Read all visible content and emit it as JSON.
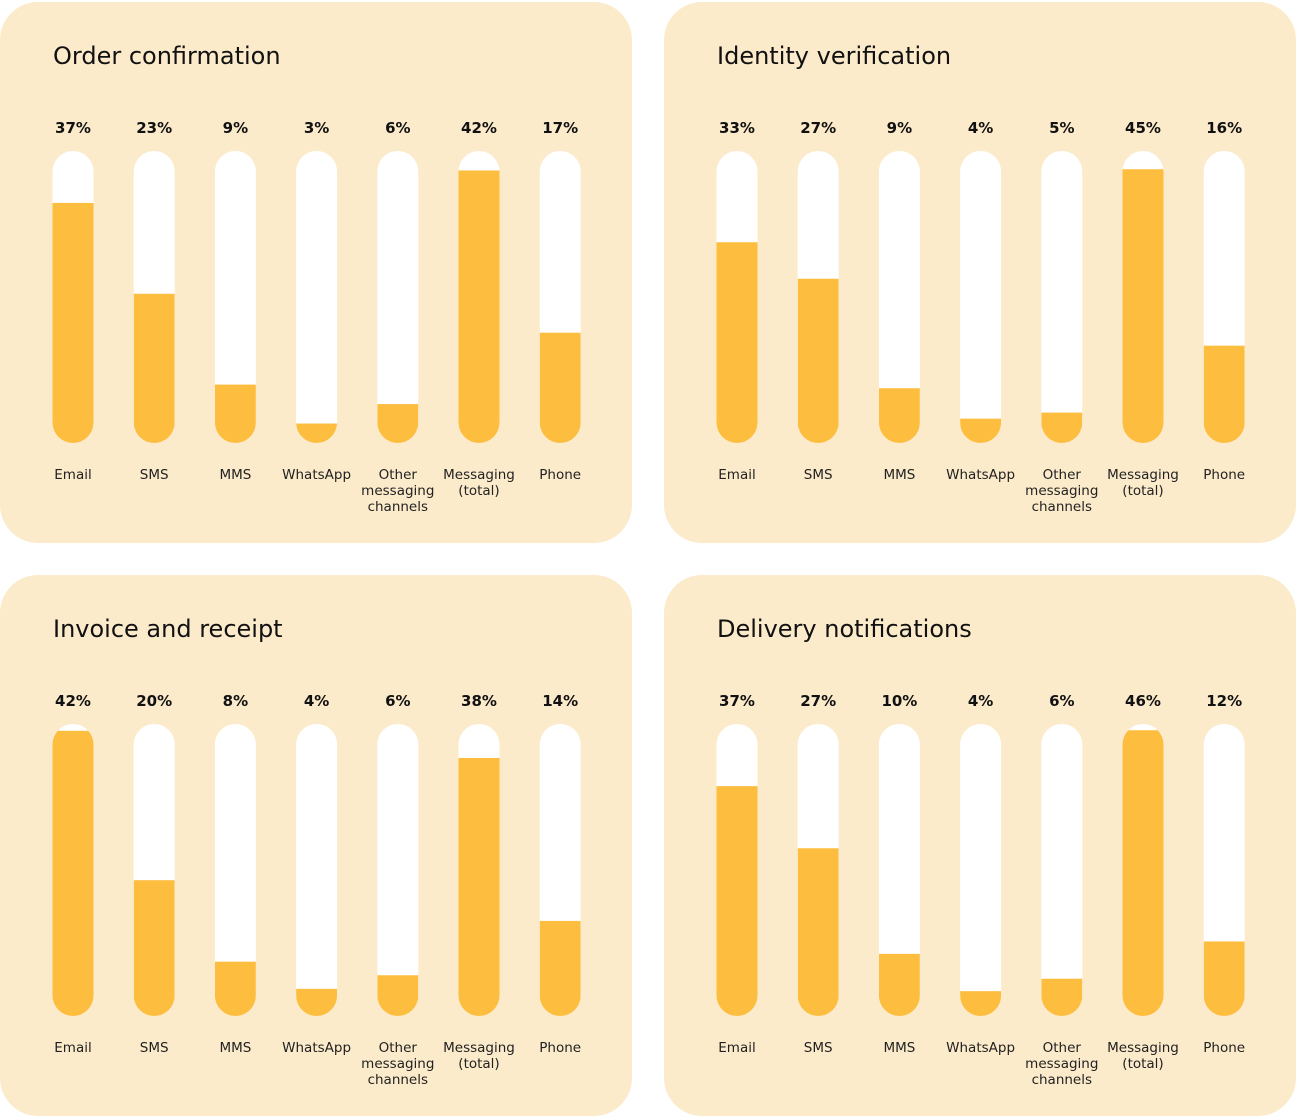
{
  "colors": {
    "panel_bg": "#fcebcb",
    "track": "#ffffff",
    "fill": "#fdbd3f",
    "text": "#111111"
  },
  "chart_data": [
    {
      "type": "bar",
      "title": "Order confirmation",
      "categories": [
        "Email",
        "SMS",
        "MMS",
        "WhatsApp",
        "Other messaging channels",
        "Messaging (total)",
        "Phone"
      ],
      "category_lines": [
        [
          "Email"
        ],
        [
          "SMS"
        ],
        [
          "MMS"
        ],
        [
          "WhatsApp"
        ],
        [
          "Other",
          "messaging",
          "channels"
        ],
        [
          "Messaging",
          "(total)"
        ],
        [
          "Phone"
        ]
      ],
      "values": [
        37,
        23,
        9,
        3,
        6,
        42,
        17
      ],
      "value_labels": [
        "37%",
        "23%",
        "9%",
        "3%",
        "6%",
        "42%",
        "17%"
      ],
      "ylim": [
        0,
        45
      ],
      "unit": "%"
    },
    {
      "type": "bar",
      "title": "Identity verification",
      "categories": [
        "Email",
        "SMS",
        "MMS",
        "WhatsApp",
        "Other messaging channels",
        "Messaging (total)",
        "Phone"
      ],
      "category_lines": [
        [
          "Email"
        ],
        [
          "SMS"
        ],
        [
          "MMS"
        ],
        [
          "WhatsApp"
        ],
        [
          "Other",
          "messaging",
          "channels"
        ],
        [
          "Messaging",
          "(total)"
        ],
        [
          "Phone"
        ]
      ],
      "values": [
        33,
        27,
        9,
        4,
        5,
        45,
        16
      ],
      "value_labels": [
        "33%",
        "27%",
        "9%",
        "4%",
        "5%",
        "45%",
        "16%"
      ],
      "ylim": [
        0,
        48
      ],
      "unit": "%"
    },
    {
      "type": "bar",
      "title": "Invoice and receipt",
      "categories": [
        "Email",
        "SMS",
        "MMS",
        "WhatsApp",
        "Other messaging channels",
        "Messaging (total)",
        "Phone"
      ],
      "category_lines": [
        [
          "Email"
        ],
        [
          "SMS"
        ],
        [
          "MMS"
        ],
        [
          "WhatsApp"
        ],
        [
          "Other",
          "messaging",
          "channels"
        ],
        [
          "Messaging",
          "(total)"
        ],
        [
          "Phone"
        ]
      ],
      "values": [
        42,
        20,
        8,
        4,
        6,
        38,
        14
      ],
      "value_labels": [
        "42%",
        "20%",
        "8%",
        "4%",
        "6%",
        "38%",
        "14%"
      ],
      "ylim": [
        0,
        43
      ],
      "unit": "%"
    },
    {
      "type": "bar",
      "title": "Delivery notifications",
      "categories": [
        "Email",
        "SMS",
        "MMS",
        "WhatsApp",
        "Other messaging channels",
        "Messaging (total)",
        "Phone"
      ],
      "category_lines": [
        [
          "Email"
        ],
        [
          "SMS"
        ],
        [
          "MMS"
        ],
        [
          "WhatsApp"
        ],
        [
          "Other",
          "messaging",
          "channels"
        ],
        [
          "Messaging",
          "(total)"
        ],
        [
          "Phone"
        ]
      ],
      "values": [
        37,
        27,
        10,
        4,
        6,
        46,
        12
      ],
      "value_labels": [
        "37%",
        "27%",
        "10%",
        "4%",
        "6%",
        "46%",
        "12%"
      ],
      "ylim": [
        0,
        47
      ],
      "unit": "%"
    }
  ]
}
